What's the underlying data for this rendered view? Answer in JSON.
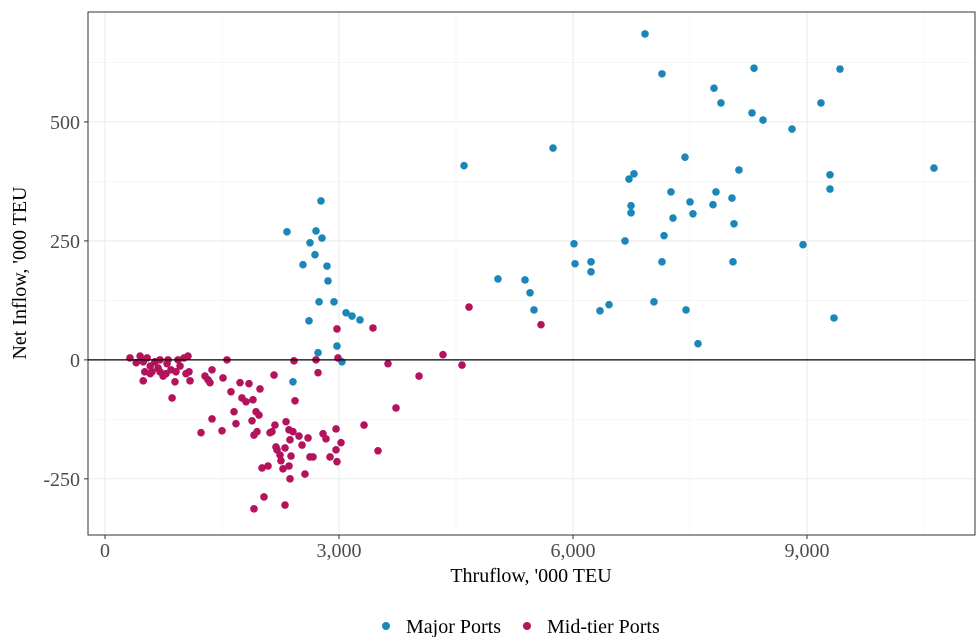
{
  "chart_data": {
    "type": "scatter",
    "x_label": "Thruflow, '000 TEU",
    "y_label": "Net Inflow, '000 TEU",
    "xlim": [
      -218,
      11154
    ],
    "ylim": [
      -368,
      731
    ],
    "xticks": [
      0,
      {
        "value": 3000,
        "label": "3,000"
      },
      {
        "value": 6000,
        "label": "6,000"
      },
      {
        "value": 9000,
        "label": "9,000"
      }
    ],
    "yticks": [
      -250,
      0,
      250,
      500
    ],
    "grid": true,
    "zero_line": true,
    "legend": "bottom",
    "series": [
      {
        "name": "Major Ports",
        "color": "#1b87b8",
        "x": [
          6923,
          7141,
          8321,
          9423,
          7808,
          7897,
          8295,
          8436,
          9179,
          8808,
          4603,
          5744,
          10628,
          7436,
          8128,
          6782,
          6718,
          9295,
          7256,
          7500,
          7833,
          7795,
          8038,
          6744,
          6744,
          7538,
          7282,
          9295,
          2769,
          8064,
          7167,
          6667,
          6013,
          8949,
          2333,
          2705,
          2628,
          2782,
          2692,
          2538,
          2846,
          6026,
          6231,
          6231,
          7141,
          8051,
          2859,
          5038,
          5385,
          5449,
          5500,
          6462,
          6346,
          7038,
          7449,
          2744,
          2936,
          3090,
          3167,
          3269,
          2615,
          9346,
          7603,
          2974,
          2731,
          3038,
          2410
        ],
        "y": [
          685,
          601,
          613,
          611,
          571,
          540,
          519,
          504,
          540,
          485,
          408,
          445,
          403,
          426,
          399,
          391,
          380,
          389,
          353,
          332,
          353,
          326,
          340,
          324,
          309,
          307,
          298,
          359,
          334,
          286,
          261,
          250,
          244,
          242,
          269,
          271,
          246,
          256,
          221,
          200,
          197,
          202,
          206,
          185,
          206,
          206,
          166,
          170,
          168,
          141,
          105,
          116,
          103,
          122,
          105,
          122,
          122,
          99,
          92,
          84,
          82,
          88,
          34,
          29,
          15,
          -4,
          -46
        ]
      },
      {
        "name": "Mid-tier Ports",
        "color": "#b3135a",
        "x": [
          320,
          450,
          490,
          540,
          580,
          510,
          580,
          640,
          680,
          705,
          745,
          795,
          846,
          897,
          860,
          936,
          962,
          1013,
          1038,
          1077,
          1064,
          1090,
          603,
          705,
          490,
          400,
          910,
          782,
          808,
          1231,
          1282,
          1321,
          1372,
          1346,
          1372,
          1500,
          1564,
          1513,
          1615,
          1654,
          1679,
          1731,
          1756,
          1808,
          1846,
          1897,
          1885,
          1936,
          1910,
          1949,
          1987,
          1974,
          2013,
          2090,
          2167,
          2179,
          2141,
          2115,
          2192,
          2205,
          2244,
          2256,
          2282,
          2308,
          2321,
          2359,
          2372,
          2385,
          2359,
          2372,
          2308,
          2038,
          1910,
          2423,
          2436,
          2410,
          2487,
          2526,
          2564,
          2628,
          2603,
          2705,
          2731,
          2667,
          2795,
          2833,
          2885,
          2962,
          2974,
          2962,
          2987,
          2974,
          3026,
          3321,
          3436,
          3500,
          3628,
          3731,
          4026,
          4333,
          4577,
          4667,
          5590
        ],
        "y": [
          4,
          8,
          -4,
          4,
          -13,
          -25,
          -29,
          -4,
          -17,
          0,
          -34,
          -8,
          -21,
          -46,
          -80,
          0,
          -13,
          4,
          -29,
          -25,
          8,
          -44,
          -25,
          -25,
          -44,
          -6,
          -25,
          -29,
          0,
          -153,
          -34,
          -42,
          -21,
          -48,
          -124,
          -149,
          0,
          -38,
          -67,
          -109,
          -134,
          -48,
          -80,
          -88,
          -50,
          -84,
          -128,
          -109,
          -158,
          -151,
          -61,
          -116,
          -227,
          -223,
          -32,
          -137,
          -151,
          -153,
          -183,
          -189,
          -200,
          -212,
          -229,
          -185,
          -130,
          -147,
          -168,
          -202,
          -223,
          -250,
          -305,
          -288,
          -313,
          -2,
          -86,
          -151,
          -160,
          -179,
          -240,
          -204,
          -164,
          0,
          -27,
          -204,
          -155,
          -166,
          -204,
          -189,
          -214,
          -145,
          4,
          65,
          -174,
          -137,
          67,
          -191,
          -8,
          -101,
          -34,
          11,
          -11,
          111,
          74
        ]
      }
    ]
  }
}
